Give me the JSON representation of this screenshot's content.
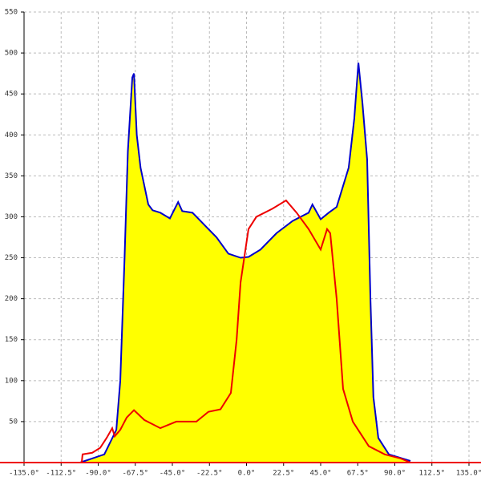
{
  "chart_data": {
    "type": "area",
    "xlim": [
      -135,
      135
    ],
    "ylim": [
      0,
      550
    ],
    "xticks": [
      {
        "value": -135,
        "label": "-135.0°"
      },
      {
        "value": -112.5,
        "label": "-112.5°"
      },
      {
        "value": -90,
        "label": "-90.0°"
      },
      {
        "value": -67.5,
        "label": "-67.5°"
      },
      {
        "value": -45,
        "label": "-45.0°"
      },
      {
        "value": -22.5,
        "label": "-22.5°"
      },
      {
        "value": 0,
        "label": "0.0°"
      },
      {
        "value": 22.5,
        "label": "22.5°"
      },
      {
        "value": 45,
        "label": "45.0°"
      },
      {
        "value": 67.5,
        "label": "67.5°"
      },
      {
        "value": 90,
        "label": "90.0°"
      },
      {
        "value": 112.5,
        "label": "112.5°"
      },
      {
        "value": 135,
        "label": "135.0°"
      }
    ],
    "yticks": [
      50,
      100,
      150,
      200,
      250,
      300,
      350,
      400,
      450,
      500,
      550
    ],
    "grid": true,
    "series": [
      {
        "color": "#0000cc",
        "fill": "#ffff00",
        "x": [
          -101,
          -86.3,
          -79,
          -76.6,
          -74,
          -72,
          -69.3,
          -68.3,
          -66.6,
          -64.3,
          -59.6,
          -57,
          -52.3,
          -46.5,
          -41.5,
          -39,
          -32.8,
          -25.5,
          -18.2,
          -11,
          -3.6,
          1.2,
          8.5,
          18.2,
          28,
          37.7,
          40,
          45,
          49.9,
          54.7,
          62,
          65.4,
          67.9,
          70.3,
          73.2,
          75.2,
          77,
          80,
          86.4,
          99.5
        ],
        "values": [
          0,
          10,
          40,
          100,
          250,
          380,
          470,
          475,
          400,
          360,
          315,
          308,
          305,
          298,
          318,
          307,
          305,
          290,
          275,
          255,
          250,
          251,
          260,
          280,
          295,
          305,
          315,
          297,
          305,
          312,
          360,
          420,
          488,
          440,
          370,
          200,
          80,
          30,
          10,
          2
        ]
      },
      {
        "color": "#ee0000",
        "x": [
          -100,
          -99.5,
          -93.6,
          -88.8,
          -84.9,
          -81.5,
          -80,
          -76.6,
          -72.7,
          -68.3,
          -62,
          -52.3,
          -42.6,
          -30.4,
          -23.1,
          -15.8,
          -9.5,
          -6,
          -3.6,
          1.2,
          6,
          15.8,
          24,
          30.4,
          37.7,
          45,
          48.9,
          50.8,
          54.7,
          58.6,
          64.5,
          74.2,
          83.9,
          93.6,
          99.5
        ],
        "values": [
          0,
          10,
          12,
          18,
          30,
          42,
          32,
          40,
          55,
          64,
          52,
          42,
          50,
          50,
          62,
          65,
          85,
          150,
          220,
          285,
          300,
          310,
          320,
          305,
          285,
          260,
          285,
          280,
          200,
          90,
          50,
          20,
          10,
          5,
          0
        ]
      }
    ]
  }
}
